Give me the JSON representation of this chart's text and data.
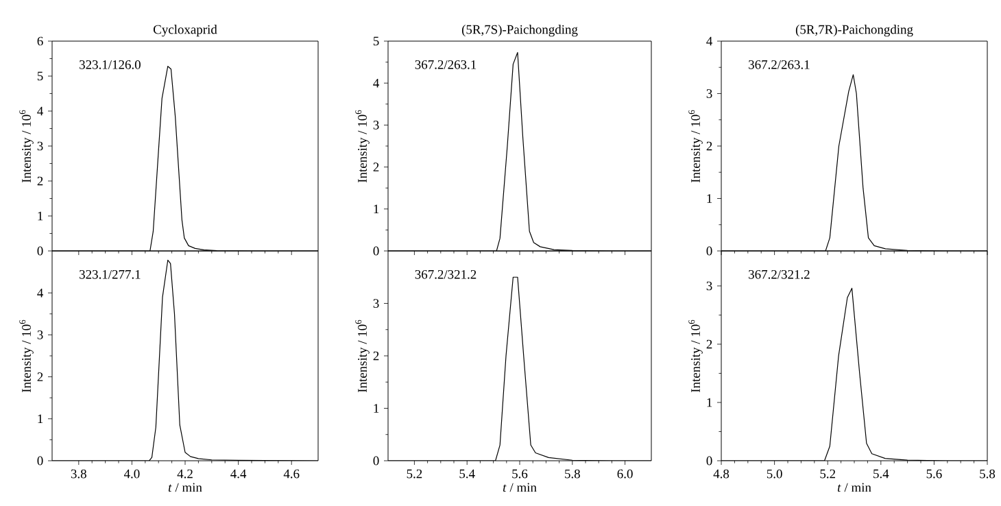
{
  "chart_data": [
    {
      "type": "line",
      "title": "Cycloxaprid",
      "ylabel": "Intensity / 10$^{6}$",
      "annotations": [
        "323.1/126.0"
      ],
      "color": "#000000",
      "xlim": [
        3.7,
        4.7
      ],
      "xticks": [
        3.8,
        4.0,
        4.2,
        4.4,
        4.6
      ],
      "ylim": [
        0,
        6
      ],
      "yticks": [
        0,
        1,
        2,
        3,
        4,
        5,
        6
      ],
      "tick_labels": "y",
      "x": [
        3.7,
        4.0,
        4.068,
        4.08,
        4.113,
        4.135,
        4.147,
        4.163,
        4.188,
        4.197,
        4.213,
        4.238,
        4.27,
        4.32,
        4.45,
        4.7
      ],
      "values": [
        0,
        0,
        0,
        0.56,
        4.36,
        5.28,
        5.2,
        3.84,
        0.89,
        0.37,
        0.15,
        0.07,
        0.03,
        0.01,
        0,
        0
      ]
    },
    {
      "type": "line",
      "title": "(5R,7S)-Paichongding",
      "ylabel": "Intensity / 10$^{6}$",
      "annotations": [
        "367.2/263.1"
      ],
      "color": "#000000",
      "xlim": [
        5.1,
        6.1
      ],
      "xticks": [
        5.2,
        5.4,
        5.6,
        5.8,
        6.0
      ],
      "ylim": [
        0,
        5
      ],
      "yticks": [
        0,
        1,
        2,
        3,
        4,
        5
      ],
      "tick_labels": "y",
      "x": [
        5.1,
        5.4,
        5.512,
        5.525,
        5.553,
        5.575,
        5.592,
        5.612,
        5.637,
        5.653,
        5.678,
        5.73,
        5.8,
        5.95,
        6.1
      ],
      "values": [
        0,
        0,
        0,
        0.3,
        2.5,
        4.45,
        4.73,
        2.7,
        0.47,
        0.2,
        0.1,
        0.03,
        0.01,
        0,
        0
      ]
    },
    {
      "type": "line",
      "title": "(5R,7R)-Paichongding",
      "ylabel": "Intensity / 10$^{6}$",
      "annotations": [
        "367.2/263.1"
      ],
      "color": "#000000",
      "xlim": [
        4.8,
        5.8
      ],
      "xticks": [
        4.8,
        5.0,
        5.2,
        5.4,
        5.6,
        5.8
      ],
      "ylim": [
        0,
        4
      ],
      "yticks": [
        0,
        1,
        2,
        3,
        4
      ],
      "tick_labels": "y",
      "x": [
        4.8,
        5.1,
        5.192,
        5.208,
        5.242,
        5.279,
        5.296,
        5.308,
        5.333,
        5.353,
        5.375,
        5.417,
        5.5,
        5.65,
        5.8
      ],
      "values": [
        0,
        0,
        0,
        0.25,
        2.0,
        3.04,
        3.36,
        3.0,
        1.2,
        0.25,
        0.1,
        0.04,
        0.01,
        0,
        0
      ]
    },
    {
      "type": "line",
      "xlabel": "*t* / min",
      "ylabel": "Intensity / 10$^{6}$",
      "annotations": [
        "323.1/277.1"
      ],
      "color": "#000000",
      "xlim": [
        3.7,
        4.7
      ],
      "xticks": [
        3.8,
        {
          "value": 4,
          "label": "4.0"
        },
        4.2,
        4.4,
        4.6
      ],
      "ylim": [
        0,
        5
      ],
      "yticks": [
        0,
        1,
        2,
        3,
        4
      ],
      "x": [
        3.7,
        4.0,
        4.065,
        4.075,
        4.09,
        4.115,
        4.135,
        4.145,
        4.16,
        4.18,
        4.2,
        4.22,
        4.25,
        4.3,
        4.4,
        4.7
      ],
      "values": [
        0,
        0,
        0,
        0.08,
        0.8,
        3.9,
        4.78,
        4.7,
        3.5,
        0.85,
        0.2,
        0.1,
        0.05,
        0.02,
        0.01,
        0
      ]
    },
    {
      "type": "line",
      "xlabel": "*t* / min",
      "ylabel": "Intensity / 10$^{6}$",
      "annotations": [
        "367.2/321.2"
      ],
      "color": "#000000",
      "xlim": [
        5.1,
        6.1
      ],
      "xticks": [
        5.2,
        5.4,
        5.6,
        5.8,
        {
          "value": 6,
          "label": "6.0"
        }
      ],
      "ylim": [
        0,
        4
      ],
      "yticks": [
        0,
        1,
        2,
        3
      ],
      "x": [
        5.1,
        5.4,
        5.508,
        5.525,
        5.548,
        5.575,
        5.592,
        5.615,
        5.642,
        5.66,
        5.71,
        5.8,
        5.95,
        6.1
      ],
      "values": [
        0,
        0,
        0,
        0.3,
        2.0,
        3.5,
        3.5,
        2.0,
        0.3,
        0.15,
        0.06,
        0.01,
        0,
        0
      ]
    },
    {
      "type": "line",
      "xlabel": "*t* / min",
      "ylabel": "Intensity / 10$^{6}$",
      "annotations": [
        "367.2/321.2"
      ],
      "color": "#000000",
      "xlim": [
        4.8,
        5.8
      ],
      "xticks": [
        4.8,
        {
          "value": 5,
          "label": "5.0"
        },
        5.2,
        5.4,
        5.6,
        5.8
      ],
      "ylim": [
        0,
        3.6
      ],
      "yticks": [
        0,
        1,
        2,
        3
      ],
      "x": [
        4.8,
        5.1,
        5.188,
        5.208,
        5.241,
        5.274,
        5.291,
        5.32,
        5.346,
        5.366,
        5.416,
        5.5,
        5.65,
        5.8
      ],
      "values": [
        0,
        0,
        0,
        0.25,
        1.8,
        2.8,
        2.96,
        1.5,
        0.3,
        0.12,
        0.04,
        0.01,
        0,
        0
      ]
    }
  ]
}
